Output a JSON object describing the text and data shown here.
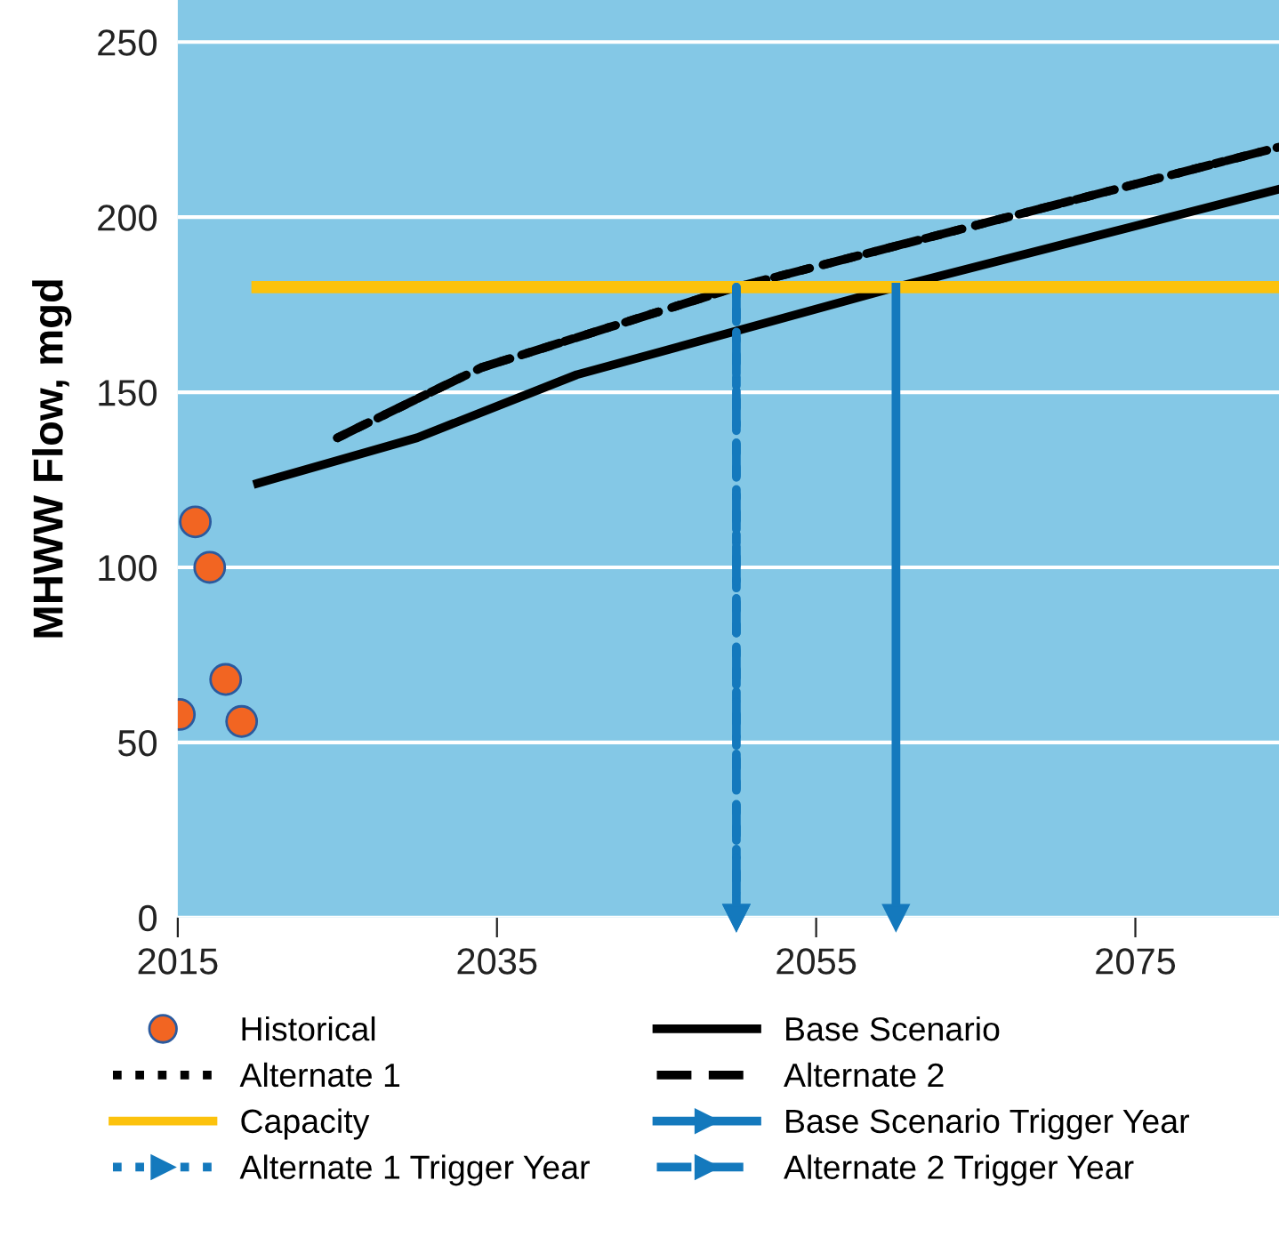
{
  "chart_data": {
    "type": "line",
    "ylabel": "MHWW Flow, mgd",
    "xlim": [
      2015,
      2084
    ],
    "ylim": [
      0,
      262
    ],
    "xticks": [
      2015,
      2035,
      2055,
      2075
    ],
    "yticks": [
      0,
      50,
      100,
      150,
      200,
      250
    ],
    "grid": "y",
    "legend": "bottom",
    "series": [
      {
        "name": "Historical",
        "type": "scatter",
        "color": "#f26522",
        "marker": "circle",
        "x": [
          2015.1,
          2016.1,
          2017,
          2018,
          2019
        ],
        "values": [
          58,
          113,
          100,
          68,
          56
        ]
      },
      {
        "name": "Base Scenario",
        "color": "#000000",
        "line_style": "solid",
        "x": [
          2020,
          2030,
          2040,
          2060,
          2084
        ],
        "values": [
          124,
          137,
          155,
          180,
          208
        ]
      },
      {
        "name": "Alternate 1",
        "color": "#000000",
        "line_style": "dotted",
        "x": [
          2025,
          2034,
          2050,
          2084
        ],
        "values": [
          137,
          157,
          180,
          220
        ]
      },
      {
        "name": "Alternate 2",
        "color": "#000000",
        "line_style": "dashed",
        "x": [
          2025,
          2034,
          2050,
          2084
        ],
        "values": [
          137,
          157,
          180,
          220
        ]
      },
      {
        "name": "Capacity",
        "color": "#fcc20d",
        "line_style": "solid",
        "x": [
          2020,
          2084
        ],
        "values": [
          180,
          180
        ]
      },
      {
        "name": "Base Scenario Trigger Year",
        "color": "#1479bd",
        "line_style": "solid",
        "marker": "triangle",
        "x": [
          2060,
          2060
        ],
        "values": [
          180,
          0
        ]
      },
      {
        "name": "Alternate 1 Trigger Year",
        "color": "#1479bd",
        "line_style": "dotted",
        "marker": "triangle",
        "x": [
          2050,
          2050
        ],
        "values": [
          180,
          0
        ]
      },
      {
        "name": "Alternate 2 Trigger Year",
        "color": "#1479bd",
        "line_style": "dashed",
        "marker": "triangle",
        "x": [
          2050,
          2050
        ],
        "values": [
          180,
          0
        ]
      }
    ]
  }
}
